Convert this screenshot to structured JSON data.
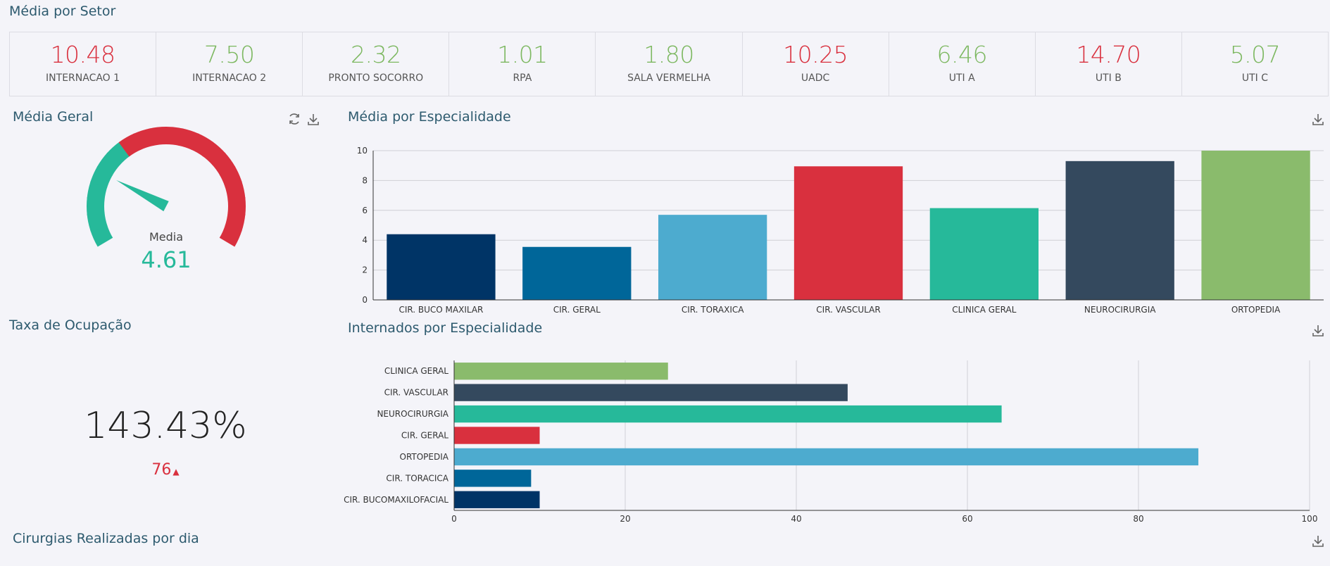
{
  "header": {
    "title": "Média por Setor"
  },
  "setores": [
    {
      "value": "10.48",
      "label": "INTERNACAO 1",
      "color": "#d9303e"
    },
    {
      "value": "7.50",
      "label": "INTERNACAO 2",
      "color": "#7db861"
    },
    {
      "value": "2.32",
      "label": "PRONTO SOCORRO",
      "color": "#7db861"
    },
    {
      "value": "1.01",
      "label": "RPA",
      "color": "#7db861"
    },
    {
      "value": "1.80",
      "label": "SALA VERMELHA",
      "color": "#7db861"
    },
    {
      "value": "10.25",
      "label": "UADC",
      "color": "#d9303e"
    },
    {
      "value": "6.46",
      "label": "UTI A",
      "color": "#7db861"
    },
    {
      "value": "14.70",
      "label": "UTI B",
      "color": "#d9303e"
    },
    {
      "value": "5.07",
      "label": "UTI C",
      "color": "#7db861"
    }
  ],
  "media_geral": {
    "title": "Média Geral",
    "label": "Media",
    "value": "4.61",
    "gauge_fraction": 0.24,
    "colors": {
      "low": "#26b99a",
      "high": "#d9303e"
    },
    "icons": [
      "refresh-icon",
      "download-icon"
    ]
  },
  "taxa": {
    "title": "Taxa de Ocupação",
    "value": "143.43%",
    "delta": "76",
    "delta_color": "#d9303e"
  },
  "cirurgias": {
    "title": "Cirurgias Realizadas por dia"
  },
  "chart_data": [
    {
      "type": "bar",
      "title": "Média por Especialidade",
      "categories": [
        "CIR. BUCO MAXILAR",
        "CIR. GERAL",
        "CIR. TORAXICA",
        "CIR. VASCULAR",
        "CLINICA GERAL",
        "NEUROCIRURGIA",
        "ORTOPEDIA"
      ],
      "values": [
        4.4,
        3.55,
        5.7,
        8.95,
        6.15,
        9.3,
        10
      ],
      "colors": [
        "#003466",
        "#006699",
        "#4dabcf",
        "#d9303e",
        "#26b99a",
        "#34495e",
        "#8abb6c"
      ],
      "ylim": [
        0,
        10
      ],
      "yticks": [
        "0",
        "2",
        "4",
        "6",
        "8",
        "10"
      ],
      "grid": true
    },
    {
      "type": "bar",
      "orientation": "horizontal",
      "title": "Internados por Especialidade",
      "categories": [
        "CLINICA GERAL",
        "CIR. VASCULAR",
        "NEUROCIRURGIA",
        "CIR. GERAL",
        "ORTOPEDIA",
        "CIR. TORACICA",
        "CIR. BUCOMAXILOFACIAL"
      ],
      "values": [
        25,
        46,
        64,
        10,
        87,
        9,
        10
      ],
      "colors": [
        "#8abb6c",
        "#34495e",
        "#26b99a",
        "#d9303e",
        "#4dabcf",
        "#006699",
        "#003466"
      ],
      "xlim": [
        0,
        100
      ],
      "xticks": [
        "0",
        "20",
        "40",
        "60",
        "80",
        "100"
      ],
      "grid": true
    }
  ]
}
